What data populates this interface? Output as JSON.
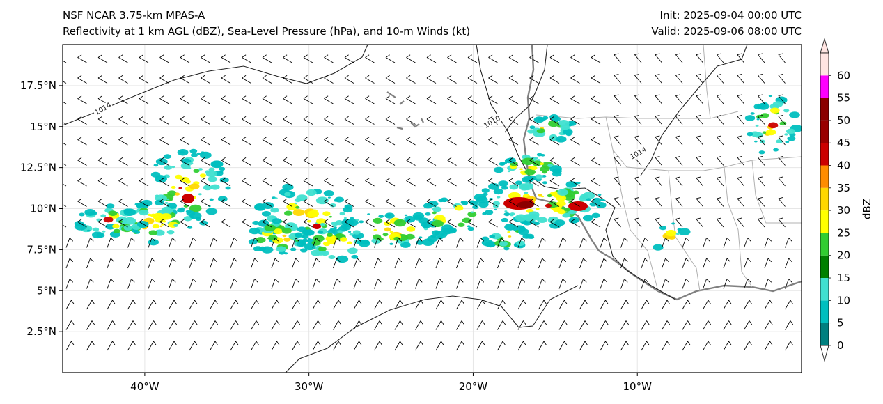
{
  "header": {
    "left_line1": "NSF NCAR 3.75-km MPAS-A",
    "left_line2": "Reflectivity at 1 km AGL (dBZ), Sea-Level Pressure (hPa), and 10-m Winds (kt)",
    "right_line1": "Init: 2025-09-04 00:00 UTC",
    "right_line2": "Valid: 2025-09-06 08:00 UTC"
  },
  "map": {
    "lon_range": [
      -45,
      0
    ],
    "lat_range": [
      0,
      20
    ],
    "lat_ticks": [
      {
        "value": 2.5,
        "label": "2.5°N"
      },
      {
        "value": 5,
        "label": "5°N"
      },
      {
        "value": 7.5,
        "label": "7.5°N"
      },
      {
        "value": 10,
        "label": "10°N"
      },
      {
        "value": 12.5,
        "label": "12.5°N"
      },
      {
        "value": 15,
        "label": "15°N"
      },
      {
        "value": 17.5,
        "label": "17.5°N"
      }
    ],
    "lon_ticks": [
      {
        "value": -40,
        "label": "40°W"
      },
      {
        "value": -30,
        "label": "30°W"
      },
      {
        "value": -20,
        "label": "20°W"
      },
      {
        "value": -10,
        "label": "10°W"
      }
    ],
    "isobar_labels": [
      {
        "text": "1014",
        "lon": -42.5,
        "lat": 16.0
      },
      {
        "text": "1010",
        "lon": -18.8,
        "lat": 15.2
      },
      {
        "text": "1014",
        "lon": -9.9,
        "lat": 13.3
      }
    ]
  },
  "colorbar": {
    "label": "dBZ",
    "levels": [
      0,
      5,
      10,
      15,
      20,
      25,
      30,
      35,
      40,
      45,
      50,
      55,
      60
    ],
    "tick_labels": [
      "0",
      "5",
      "10",
      "15",
      "20",
      "25",
      "30",
      "35",
      "40",
      "45",
      "50",
      "55",
      "60"
    ],
    "colors": [
      "#008080",
      "#00bfbf",
      "#40e0d0",
      "#008000",
      "#32cd32",
      "#ffff00",
      "#ffd700",
      "#ff8c00",
      "#cc0000",
      "#990000",
      "#8b0000",
      "#ff00ff",
      "#ffe4e1"
    ]
  }
}
